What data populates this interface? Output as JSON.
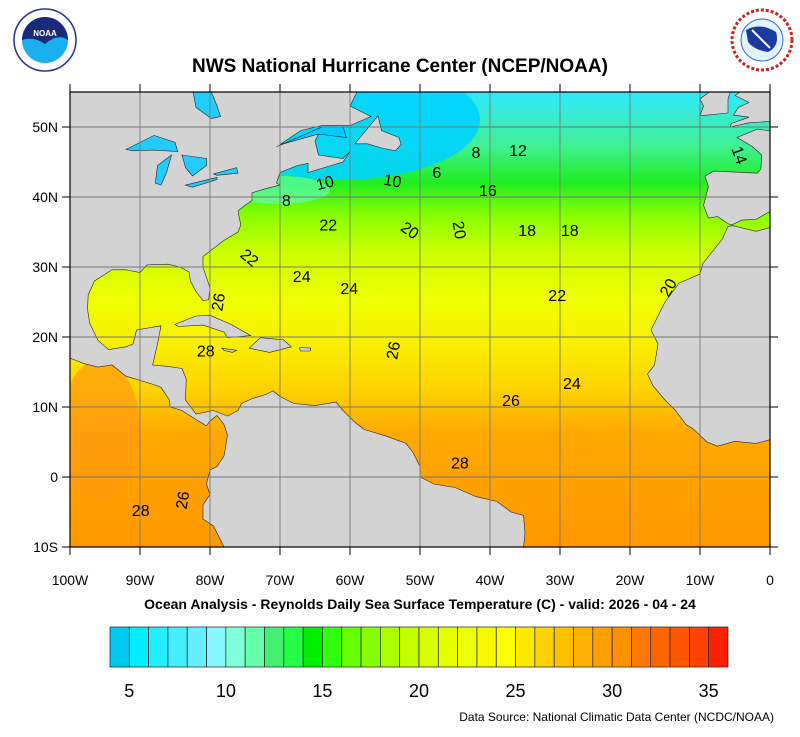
{
  "header": {
    "title": "NWS National Hurricane Center (NCEP/NOAA)",
    "left_logo": "NOAA",
    "right_logo": "NATIONAL WEATHER SERVICE"
  },
  "map": {
    "subtitle": "Ocean Analysis - Reynolds Daily Sea Surface Temperature (C) - valid: 2026 - 04 - 24",
    "lon_range": [
      -100,
      0
    ],
    "lat_range": [
      -10,
      55
    ],
    "lat_labels": [
      "50N",
      "40N",
      "30N",
      "20N",
      "10N",
      "0",
      "10S"
    ],
    "lat_values": [
      50,
      40,
      30,
      20,
      10,
      0,
      -10
    ],
    "lon_labels": [
      "100W",
      "90W",
      "80W",
      "70W",
      "60W",
      "50W",
      "40W",
      "30W",
      "20W",
      "10W",
      "0"
    ],
    "lon_values": [
      -100,
      -90,
      -80,
      -70,
      -60,
      -50,
      -40,
      -30,
      -20,
      -10,
      0
    ],
    "grid": true,
    "land_color": "#d3d3d3",
    "lake_color": "#22ccff",
    "contour_labels": [
      {
        "text": "12",
        "lon": -36,
        "lat": 46.7,
        "rot": 0
      },
      {
        "text": "8",
        "lon": -42,
        "lat": 46.4,
        "rot": 0
      },
      {
        "text": "6",
        "lon": -47.6,
        "lat": 43.6,
        "rot": 0
      },
      {
        "text": "14",
        "lon": -4.3,
        "lat": 46,
        "rot": 70
      },
      {
        "text": "16",
        "lon": -40.3,
        "lat": 41,
        "rot": 0
      },
      {
        "text": "10",
        "lon": -63.6,
        "lat": 42.1,
        "rot": -15
      },
      {
        "text": "10",
        "lon": -53.9,
        "lat": 42.4,
        "rot": 10
      },
      {
        "text": "8",
        "lon": -69.1,
        "lat": 39.6,
        "rot": 0
      },
      {
        "text": "22",
        "lon": -63.1,
        "lat": 36.1,
        "rot": 0
      },
      {
        "text": "20",
        "lon": -51.4,
        "lat": 35.3,
        "rot": 35
      },
      {
        "text": "20",
        "lon": -44.3,
        "lat": 35.3,
        "rot": 80
      },
      {
        "text": "18",
        "lon": -34.7,
        "lat": 35.3,
        "rot": 0
      },
      {
        "text": "18",
        "lon": -28.6,
        "lat": 35.3,
        "rot": 0
      },
      {
        "text": "22",
        "lon": -74.3,
        "lat": 31.4,
        "rot": 40
      },
      {
        "text": "24",
        "lon": -66.9,
        "lat": 28.7,
        "rot": 0
      },
      {
        "text": "24",
        "lon": -60.1,
        "lat": 27,
        "rot": 0
      },
      {
        "text": "22",
        "lon": -30.4,
        "lat": 26,
        "rot": 0
      },
      {
        "text": "20",
        "lon": -14.6,
        "lat": 27.1,
        "rot": -60
      },
      {
        "text": "26",
        "lon": -78.9,
        "lat": 25,
        "rot": -80
      },
      {
        "text": "28",
        "lon": -80.6,
        "lat": 18.1,
        "rot": 0
      },
      {
        "text": "26",
        "lon": -53.9,
        "lat": 18.1,
        "rot": -80
      },
      {
        "text": "24",
        "lon": -28.3,
        "lat": 13.4,
        "rot": 0
      },
      {
        "text": "26",
        "lon": -37,
        "lat": 11,
        "rot": 0
      },
      {
        "text": "28",
        "lon": -44.3,
        "lat": 2.1,
        "rot": 0
      },
      {
        "text": "28",
        "lon": -89.9,
        "lat": -4.7,
        "rot": 0
      },
      {
        "text": "26",
        "lon": -84,
        "lat": -3.3,
        "rot": -80
      }
    ]
  },
  "colorbar": {
    "range": [
      4,
      36
    ],
    "tick_labels": [
      "5",
      "10",
      "15",
      "20",
      "25",
      "30",
      "35"
    ],
    "tick_values": [
      5,
      10,
      15,
      20,
      25,
      30,
      35
    ],
    "colors": [
      "#00c8f0",
      "#00eeff",
      "#22eeff",
      "#44eeff",
      "#66f0ff",
      "#88f8ff",
      "#80ffd8",
      "#66ffaa",
      "#44f070",
      "#22ff44",
      "#00ee00",
      "#33ff11",
      "#66ff00",
      "#88ff00",
      "#aaff00",
      "#c4ff00",
      "#d8ff00",
      "#e4ff00",
      "#eeff00",
      "#f8f800",
      "#ffff00",
      "#ffe800",
      "#ffd000",
      "#ffc000",
      "#ffb000",
      "#ffa000",
      "#ff9000",
      "#ff7800",
      "#ff6600",
      "#ff5500",
      "#ff4000",
      "#ff2000"
    ]
  },
  "footer": {
    "source": "Data Source: National Climatic Data Center (NCDC/NOAA)"
  }
}
